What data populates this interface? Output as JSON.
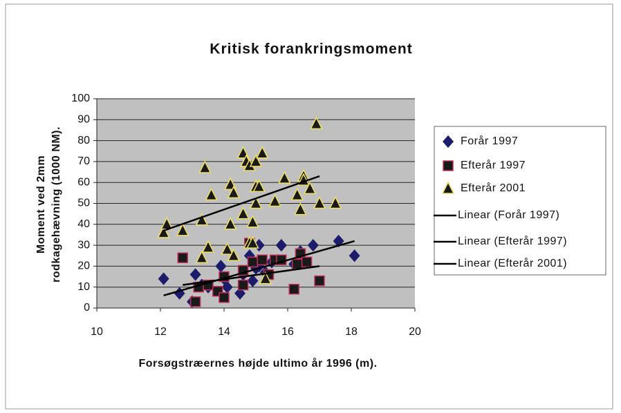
{
  "chart_data": {
    "type": "scatter",
    "title": "Kritisk forankringsmoment",
    "xlabel": "Forsøgstræernes højde ultimo år 1996 (m).",
    "ylabel": [
      "Moment ved 2mm",
      "rodkagehævning (1000 NM)."
    ],
    "xlim": [
      10,
      20
    ],
    "xticks": [
      10,
      12,
      14,
      16,
      18,
      20
    ],
    "ylim": [
      0,
      100
    ],
    "yticks": [
      0,
      10,
      20,
      30,
      40,
      50,
      60,
      70,
      80,
      90,
      100
    ],
    "grid": true,
    "legend": "right",
    "series": [
      {
        "name": "Forår 1997",
        "color": "#1c1c6a",
        "marker": "diamond",
        "x": [
          12.1,
          12.6,
          13.0,
          13.1,
          13.3,
          13.5,
          13.9,
          14.0,
          14.1,
          14.5,
          14.6,
          14.8,
          14.9,
          15.0,
          15.1,
          15.1,
          15.3,
          15.5,
          15.8,
          16.2,
          16.4,
          16.5,
          16.8,
          17.6,
          18.1
        ],
        "values": [
          14,
          7,
          3,
          16,
          11,
          10,
          20,
          14,
          10,
          7,
          16,
          25,
          13,
          19,
          30,
          20,
          17,
          22,
          30,
          21,
          27,
          22,
          30,
          32,
          25
        ]
      },
      {
        "name": "Efterår 1997",
        "color": "#1a1a1a",
        "edge": "#c0305a",
        "marker": "square",
        "x": [
          12.7,
          13.1,
          13.2,
          13.5,
          13.8,
          14.0,
          14.0,
          14.6,
          14.6,
          14.8,
          14.9,
          15.2,
          15.4,
          15.6,
          15.8,
          16.2,
          16.3,
          16.4,
          16.6,
          17.0
        ],
        "values": [
          24,
          3,
          10,
          11,
          8,
          5,
          15,
          18,
          11,
          31,
          22,
          23,
          16,
          23,
          23,
          9,
          21,
          26,
          22,
          13
        ]
      },
      {
        "name": "Efterår 2001",
        "color": "#1a1a1a",
        "edge": "#f0e060",
        "marker": "triangle",
        "x": [
          12.1,
          12.2,
          12.7,
          13.3,
          13.3,
          13.4,
          13.5,
          13.6,
          14.1,
          14.2,
          14.2,
          14.3,
          14.3,
          14.6,
          14.6,
          14.7,
          14.8,
          14.8,
          14.9,
          14.9,
          15.0,
          15.0,
          15.0,
          15.1,
          15.2,
          15.3,
          15.6,
          15.9,
          16.3,
          16.4,
          16.5,
          16.5,
          16.7,
          16.9,
          17.0,
          17.5
        ],
        "values": [
          36,
          40,
          37,
          42,
          24,
          67,
          29,
          54,
          28,
          40,
          59,
          55,
          25,
          45,
          74,
          70,
          68,
          31,
          41,
          31,
          58,
          70,
          50,
          58,
          74,
          14,
          51,
          62,
          54,
          47,
          63,
          61,
          57,
          88,
          50,
          50
        ]
      }
    ],
    "trendlines": [
      {
        "name": "Linear (Forår 1997)",
        "color": "#000000",
        "x": [
          12.1,
          18.1
        ],
        "values": [
          6,
          32
        ]
      },
      {
        "name": "Linear (Efterår 1997)",
        "color": "#000000",
        "x": [
          12.7,
          17.0
        ],
        "values": [
          11,
          20
        ]
      },
      {
        "name": "Linear (Efterår 2001)",
        "color": "#000000",
        "x": [
          12.1,
          17.0
        ],
        "values": [
          37,
          63
        ]
      }
    ]
  }
}
